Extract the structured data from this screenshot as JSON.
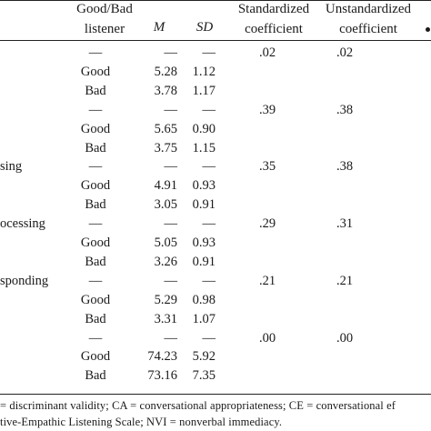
{
  "header": {
    "good_bad_line1": "Good/Bad",
    "good_bad_line2": "listener",
    "m": "M",
    "sd": "SD",
    "std_line1": "Standardized",
    "std_line2": "coefficient",
    "unstd_line1": "Unstandardized",
    "unstd_line2": "coefficient"
  },
  "rows": [
    {
      "label": "",
      "listener": "—",
      "m": "—",
      "sd": "—",
      "std": ".02",
      "unstd": ".02"
    },
    {
      "label": "",
      "listener": "Good",
      "m": "5.28",
      "sd": "1.12",
      "std": "",
      "unstd": ""
    },
    {
      "label": "",
      "listener": "Bad",
      "m": "3.78",
      "sd": "1.17",
      "std": "",
      "unstd": ""
    },
    {
      "label": "",
      "listener": "—",
      "m": "—",
      "sd": "—",
      "std": ".39",
      "unstd": ".38"
    },
    {
      "label": "",
      "listener": "Good",
      "m": "5.65",
      "sd": "0.90",
      "std": "",
      "unstd": ""
    },
    {
      "label": "",
      "listener": "Bad",
      "m": "3.75",
      "sd": "1.15",
      "std": "",
      "unstd": ""
    },
    {
      "label": "sing",
      "listener": "—",
      "m": "—",
      "sd": "—",
      "std": ".35",
      "unstd": ".38"
    },
    {
      "label": "",
      "listener": "Good",
      "m": "4.91",
      "sd": "0.93",
      "std": "",
      "unstd": ""
    },
    {
      "label": "",
      "listener": "Bad",
      "m": "3.05",
      "sd": "0.91",
      "std": "",
      "unstd": ""
    },
    {
      "label": "ocessing",
      "listener": "—",
      "m": "—",
      "sd": "—",
      "std": ".29",
      "unstd": ".31"
    },
    {
      "label": "",
      "listener": "Good",
      "m": "5.05",
      "sd": "0.93",
      "std": "",
      "unstd": ""
    },
    {
      "label": "",
      "listener": "Bad",
      "m": "3.26",
      "sd": "0.91",
      "std": "",
      "unstd": ""
    },
    {
      "label": "sponding",
      "listener": "—",
      "m": "—",
      "sd": "—",
      "std": ".21",
      "unstd": ".21"
    },
    {
      "label": "",
      "listener": "Good",
      "m": "5.29",
      "sd": "0.98",
      "std": "",
      "unstd": ""
    },
    {
      "label": "",
      "listener": "Bad",
      "m": "3.31",
      "sd": "1.07",
      "std": "",
      "unstd": ""
    },
    {
      "label": "",
      "listener": "—",
      "m": "—",
      "sd": "—",
      "std": ".00",
      "unstd": ".00"
    },
    {
      "label": "",
      "listener": "Good",
      "m": "74.23",
      "sd": "5.92",
      "std": "",
      "unstd": ""
    },
    {
      "label": "",
      "listener": "Bad",
      "m": "73.16",
      "sd": "7.35",
      "std": "",
      "unstd": ""
    }
  ],
  "notes": {
    "line1": "= discriminant  validity;  CA = conversational  appropriateness;  CE = conversational  ef",
    "line2": "tive-Empathic Listening Scale; NVI = nonverbal immediacy."
  }
}
